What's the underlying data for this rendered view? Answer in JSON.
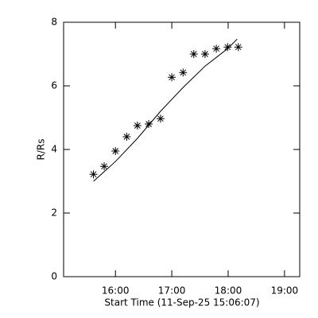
{
  "chart_data": {
    "type": "scatter",
    "x_label": "Start Time (11-Sep-25 15:06:07)",
    "y_label": "R/Rs",
    "xlim": [
      15.08,
      19.27
    ],
    "xticks": [
      {
        "value": 16,
        "label": "16:00"
      },
      {
        "value": 17,
        "label": "17:00"
      },
      {
        "value": 18,
        "label": "18:00"
      },
      {
        "value": 19,
        "label": "19:00"
      }
    ],
    "ylim": [
      0,
      8
    ],
    "yticks": [
      0,
      2,
      4,
      6,
      8
    ],
    "color": "#000000",
    "points": {
      "x": [
        15.61,
        15.8,
        16.0,
        16.2,
        16.39,
        16.59,
        16.8,
        17.0,
        17.2,
        17.39,
        17.59,
        17.79,
        17.99,
        18.18
      ],
      "y": [
        3.22,
        3.47,
        3.95,
        4.4,
        4.75,
        4.8,
        4.97,
        6.27,
        6.42,
        7.0,
        7.0,
        7.17,
        7.22,
        7.22
      ]
    },
    "fit": {
      "x": [
        15.61,
        16.0,
        16.39,
        16.8,
        17.2,
        17.59,
        17.99,
        18.16
      ],
      "y": [
        3.0,
        3.62,
        4.35,
        5.2,
        5.95,
        6.62,
        7.17,
        7.47
      ]
    }
  }
}
